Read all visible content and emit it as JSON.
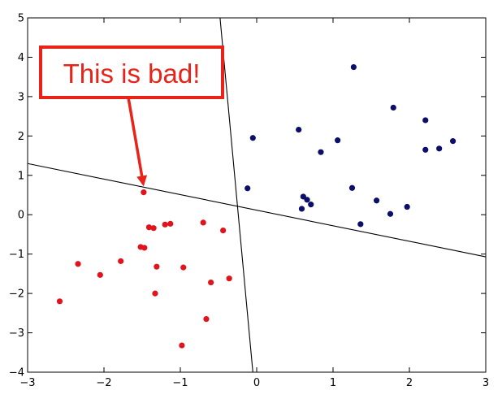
{
  "chart_data": {
    "type": "scatter",
    "title": "",
    "xlabel": "",
    "ylabel": "",
    "xlim": [
      -3,
      3
    ],
    "ylim": [
      -4,
      5
    ],
    "xticks": [
      "−3",
      "−2",
      "−1",
      "0",
      "1",
      "2",
      "3"
    ],
    "yticks": [
      "−4",
      "−3",
      "−2",
      "−1",
      "0",
      "1",
      "2",
      "3",
      "4",
      "5"
    ],
    "xtick_values": [
      -3,
      -2,
      -1,
      0,
      1,
      2,
      3
    ],
    "ytick_values": [
      -4,
      -3,
      -2,
      -1,
      0,
      1,
      2,
      3,
      4,
      5
    ],
    "grid": false,
    "series": [
      {
        "color": "#e0141c",
        "points": [
          [
            -2.58,
            -2.2
          ],
          [
            -2.34,
            -1.25
          ],
          [
            -2.05,
            -1.53
          ],
          [
            -1.78,
            -1.18
          ],
          [
            -1.52,
            -0.82
          ],
          [
            -1.47,
            -0.84
          ],
          [
            -1.48,
            0.57
          ],
          [
            -1.41,
            -0.32
          ],
          [
            -1.35,
            -0.34
          ],
          [
            -1.31,
            -1.32
          ],
          [
            -1.33,
            -2.0
          ],
          [
            -1.2,
            -0.25
          ],
          [
            -1.13,
            -0.23
          ],
          [
            -0.96,
            -1.34
          ],
          [
            -0.98,
            -3.32
          ],
          [
            -0.7,
            -0.2
          ],
          [
            -0.66,
            -2.65
          ],
          [
            -0.6,
            -1.72
          ],
          [
            -0.44,
            -0.4
          ],
          [
            -0.36,
            -1.62
          ]
        ]
      },
      {
        "color": "#0b0f6b",
        "points": [
          [
            -0.05,
            1.95
          ],
          [
            -0.12,
            0.67
          ],
          [
            0.55,
            2.16
          ],
          [
            0.59,
            0.15
          ],
          [
            0.61,
            0.46
          ],
          [
            0.66,
            0.38
          ],
          [
            0.71,
            0.26
          ],
          [
            0.84,
            1.59
          ],
          [
            1.06,
            1.89
          ],
          [
            1.25,
            0.68
          ],
          [
            1.27,
            3.75
          ],
          [
            1.36,
            -0.24
          ],
          [
            1.57,
            0.36
          ],
          [
            1.75,
            0.02
          ],
          [
            1.79,
            2.72
          ],
          [
            1.97,
            0.2
          ],
          [
            2.21,
            2.4
          ],
          [
            2.21,
            1.65
          ],
          [
            2.39,
            1.68
          ],
          [
            2.57,
            1.87
          ]
        ]
      }
    ],
    "lines": [
      {
        "from": [
          -3,
          1.3
        ],
        "to": [
          3,
          -1.07
        ],
        "color": "#000000"
      },
      {
        "from": [
          -0.48,
          5
        ],
        "to": [
          -0.05,
          -4
        ],
        "color": "#000000"
      }
    ],
    "annotation": {
      "text": "This is bad!",
      "color": "#e8231a",
      "arrow_target": [
        -1.48,
        0.72
      ]
    }
  }
}
